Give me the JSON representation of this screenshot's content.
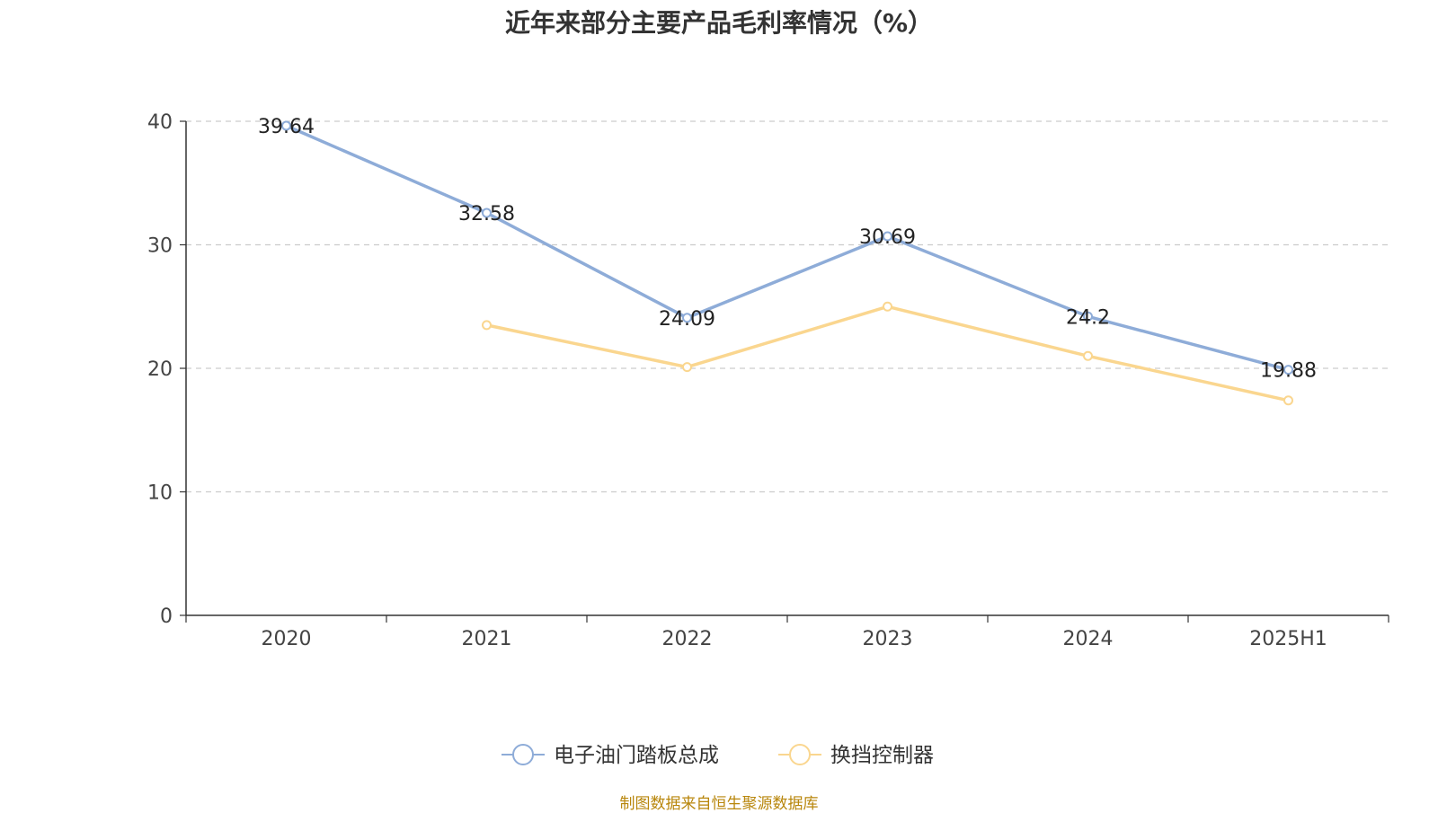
{
  "chart_data": {
    "type": "line",
    "title": "近年来部分主要产品毛利率情况（%）",
    "categories": [
      "2020",
      "2021",
      "2022",
      "2023",
      "2024",
      "2025H1"
    ],
    "series": [
      {
        "name": "电子油门踏板总成",
        "values": [
          39.64,
          32.58,
          24.09,
          30.69,
          24.2,
          19.88
        ],
        "labels": [
          "39.64",
          "32.58",
          "24.09",
          "30.69",
          "24.2",
          "19.88"
        ],
        "color": "#8eacd8"
      },
      {
        "name": "换挡控制器",
        "values": [
          null,
          23.5,
          20.1,
          25.0,
          21.0,
          17.4
        ],
        "color": "#fad68f"
      }
    ],
    "y_ticks": [
      "0",
      "10",
      "20",
      "30",
      "40"
    ],
    "ylim": [
      0,
      40
    ],
    "grid": true,
    "legend_position": "bottom"
  },
  "source_note": "制图数据来自恒生聚源数据库"
}
